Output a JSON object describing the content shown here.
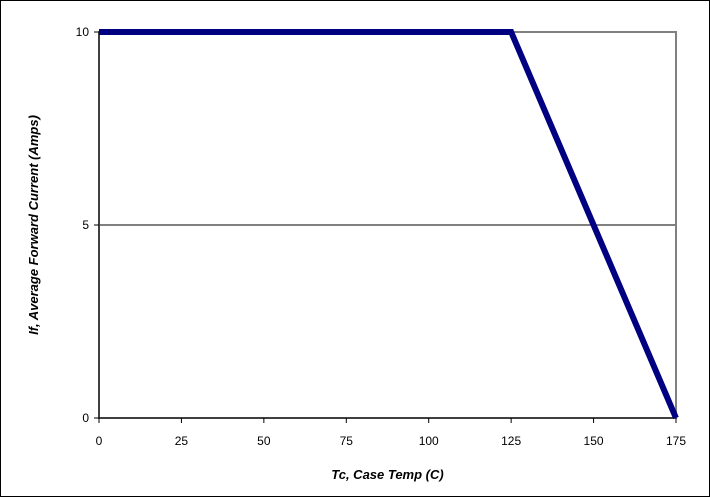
{
  "chart_data": {
    "type": "line",
    "title": "",
    "xlabel": "Tc, Case Temp (C)",
    "ylabel": "If, Average Forward Current (Amps)",
    "xlim": [
      0,
      175
    ],
    "ylim": [
      0,
      10
    ],
    "x_ticks": [
      0,
      25,
      50,
      75,
      100,
      125,
      150,
      175
    ],
    "y_ticks": [
      0,
      5,
      10
    ],
    "x_tick_labels": [
      "0",
      "25",
      "50",
      "75",
      "100",
      "125",
      "150",
      "175"
    ],
    "y_tick_labels": [
      "0",
      "5",
      "10"
    ],
    "gridlines": "horizontal",
    "legend": "none",
    "series": [
      {
        "x": [
          0,
          125,
          175
        ],
        "y": [
          10,
          10,
          0
        ],
        "color": "#000080"
      }
    ]
  }
}
